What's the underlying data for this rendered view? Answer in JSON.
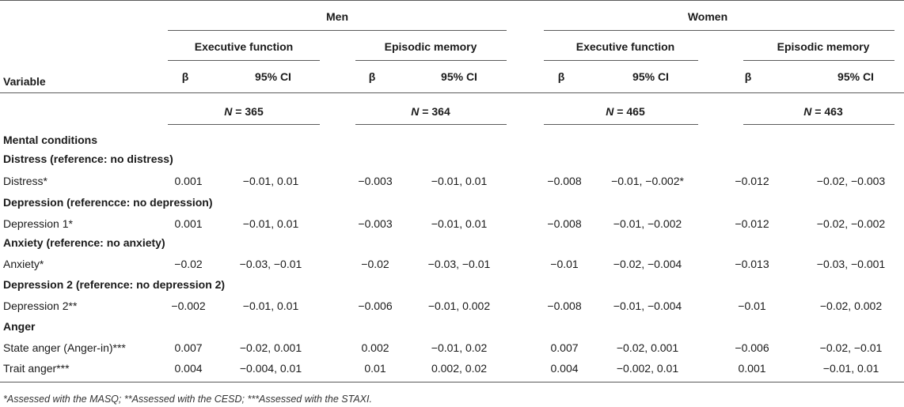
{
  "header": {
    "groups": [
      {
        "label": "Men",
        "subgroups": [
          "Executive function",
          "Episodic memory"
        ]
      },
      {
        "label": "Women",
        "subgroups": [
          "Executive function",
          "Episodic memory"
        ]
      }
    ],
    "variable_label": "Variable",
    "beta_label": "β",
    "ci_label": "95% CI",
    "n_var": "N",
    "n_eq": " = ",
    "n_values": [
      "365",
      "364",
      "465",
      "463"
    ]
  },
  "section_title": "Mental conditions",
  "rows": [
    {
      "type": "heading",
      "label": "Distress (reference: no distress)"
    },
    {
      "type": "data",
      "label": "Distress*",
      "values": [
        "0.001",
        "−0.01, 0.01",
        "−0.003",
        "−0.01, 0.01",
        "−0.008",
        "−0.01, −0.002*",
        "−0.012",
        "−0.02, −0.003"
      ]
    },
    {
      "type": "heading",
      "label": "Depression (referencce: no depression)"
    },
    {
      "type": "data",
      "label": "Depression 1*",
      "values": [
        "0.001",
        "−0.01, 0.01",
        "−0.003",
        "−0.01, 0.01",
        "−0.008",
        "−0.01, −0.002",
        "−0.012",
        "−0.02, −0.002"
      ]
    },
    {
      "type": "heading",
      "label": "Anxiety (reference: no anxiety)"
    },
    {
      "type": "data",
      "label": "Anxiety*",
      "values": [
        "−0.02",
        "−0.03, −0.01",
        "−0.02",
        "−0.03, −0.01",
        "−0.01",
        "−0.02, −0.004",
        "−0.013",
        "−0.03, −0.001"
      ]
    },
    {
      "type": "heading",
      "label": "Depression 2 (reference: no depression 2)"
    },
    {
      "type": "data",
      "label": "Depression 2**",
      "values": [
        "−0.002",
        "−0.01, 0.01",
        "−0.006",
        "−0.01, 0.002",
        "−0.008",
        "−0.01, −0.004",
        "−0.01",
        "−0.02, 0.002"
      ]
    },
    {
      "type": "heading",
      "label": "Anger"
    },
    {
      "type": "data",
      "label": "State anger (Anger-in)***",
      "values": [
        "0.007",
        "−0.02, 0.001",
        "0.002",
        "−0.01, 0.02",
        "0.007",
        "−0.02, 0.001",
        "−0.006",
        "−0.02, −0.01"
      ]
    },
    {
      "type": "data",
      "label": "Trait anger***",
      "values": [
        "0.004",
        "−0.004, 0.01",
        "0.01",
        "0.002, 0.02",
        "0.004",
        "−0.002, 0.01",
        "0.001",
        "−0.01, 0.01"
      ]
    }
  ],
  "footnote": "*Assessed with the MASQ; **Assessed with the CESD; ***Assessed with the STAXI."
}
